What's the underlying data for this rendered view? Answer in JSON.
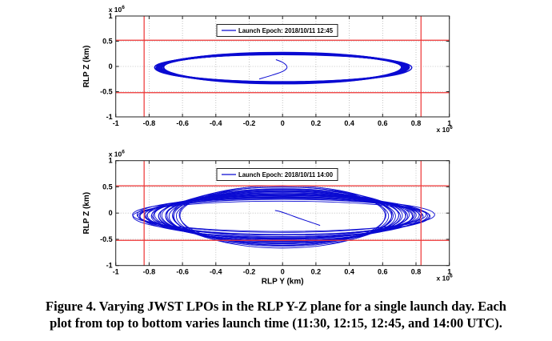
{
  "caption": {
    "line1": "Figure 4. Varying JWST LPOs in the RLP Y-Z plane for a single launch day. Each",
    "line2": "plot from top to bottom varies launch time (11:30, 12:15, 12:45, and 14:00 UTC)."
  },
  "colors": {
    "orbit_blue": "#0a0ad2",
    "constraint_red": "#ee3333",
    "grid_gray": "#b3b3b3",
    "axis_black": "#222222",
    "plot_background": "#ffffff"
  },
  "chart_data": [
    {
      "id": "top",
      "type": "line",
      "title": "",
      "xlabel": "",
      "ylabel": "RLP Z (km)",
      "unit_scale_label": "x 10",
      "unit_exponent": "6",
      "xlim": [
        -1,
        1
      ],
      "ylim": [
        -1,
        1
      ],
      "xticks": [
        -1,
        -0.8,
        -0.6,
        -0.4,
        -0.2,
        0,
        0.2,
        0.4,
        0.6,
        0.8,
        1
      ],
      "yticks": [
        1,
        0.5,
        0,
        -0.5,
        -1
      ],
      "grid": true,
      "legend": {
        "label": "Launch Epoch: 2018/10/11 12:45",
        "position": "top-center"
      },
      "constraint_lines": {
        "horizontal_z": [
          0.52,
          -0.52
        ],
        "vertical_y": [
          -0.83,
          0.83
        ]
      },
      "orbit_family": {
        "loops": 16,
        "center_y": 0,
        "center_z": -0.02,
        "ry_range": [
          0.715,
          0.765
        ],
        "rz_top_range": [
          0.255,
          0.285
        ],
        "rz_bottom_range": [
          0.285,
          0.315
        ],
        "anticorrelated": false
      },
      "transfer_trajectory": [
        [
          -0.04,
          0.135
        ],
        [
          -0.005,
          0.09
        ],
        [
          0.02,
          0.03
        ],
        [
          0.026,
          -0.03
        ],
        [
          0.0,
          -0.1
        ],
        [
          -0.06,
          -0.17
        ],
        [
          -0.14,
          -0.25
        ]
      ]
    },
    {
      "id": "bottom",
      "type": "line",
      "title": "",
      "xlabel": "RLP Y (km)",
      "ylabel": "RLP Z (km)",
      "unit_scale_label": "x 10",
      "unit_exponent": "6",
      "xlim": [
        -1,
        1
      ],
      "ylim": [
        -1,
        1
      ],
      "xticks": [
        -1,
        -0.8,
        -0.6,
        -0.4,
        -0.2,
        0,
        0.2,
        0.4,
        0.6,
        0.8,
        1
      ],
      "yticks": [
        1,
        0.5,
        0,
        -0.5,
        -1
      ],
      "grid": true,
      "legend": {
        "label": "Launch Epoch: 2018/10/11 14:00",
        "position": "top-center"
      },
      "constraint_lines": {
        "horizontal_z": [
          0.52,
          -0.52
        ],
        "vertical_y": [
          -0.83,
          0.83
        ]
      },
      "orbit_family": {
        "loops": 28,
        "center_y": 0,
        "center_z": -0.045,
        "ry_range": [
          0.615,
          0.9
        ],
        "rz_top_range": [
          0.295,
          0.545
        ],
        "rz_bottom_range": [
          0.33,
          0.6
        ],
        "anticorrelated": true
      },
      "transfer_trajectory": [
        [
          -0.045,
          0.05
        ],
        [
          -0.015,
          0.03
        ],
        [
          0.04,
          -0.03
        ],
        [
          0.1,
          -0.1
        ],
        [
          0.16,
          -0.165
        ],
        [
          0.225,
          -0.235
        ]
      ]
    }
  ]
}
